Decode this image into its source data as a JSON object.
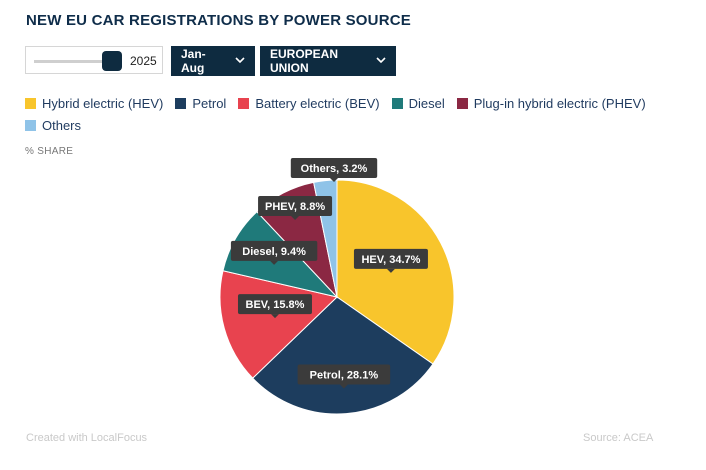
{
  "title": "NEW EU CAR REGISTRATIONS BY POWER SOURCE",
  "controls": {
    "year": "2025",
    "period": "Jan-Aug",
    "region": "EUROPEAN UNION"
  },
  "share_label": "% SHARE",
  "footer": {
    "credit": "Created with LocalFocus",
    "source": "Source:  ACEA"
  },
  "chart_data": {
    "type": "pie",
    "legend_position": "top",
    "slices": [
      {
        "name": "Hybrid electric (HEV)",
        "short": "HEV",
        "value": 34.7,
        "color": "#f8c52c"
      },
      {
        "name": "Petrol",
        "short": "Petrol",
        "value": 28.1,
        "color": "#1d3d5e"
      },
      {
        "name": "Battery electric (BEV)",
        "short": "BEV",
        "value": 15.8,
        "color": "#e8434f"
      },
      {
        "name": "Diesel",
        "short": "Diesel",
        "value": 9.4,
        "color": "#1f7a7a"
      },
      {
        "name": "Plug-in hybrid electric (PHEV)",
        "short": "PHEV",
        "value": 8.8,
        "color": "#8b2843"
      },
      {
        "name": "Others",
        "short": "Others",
        "value": 3.2,
        "color": "#8fc3e8"
      }
    ]
  }
}
